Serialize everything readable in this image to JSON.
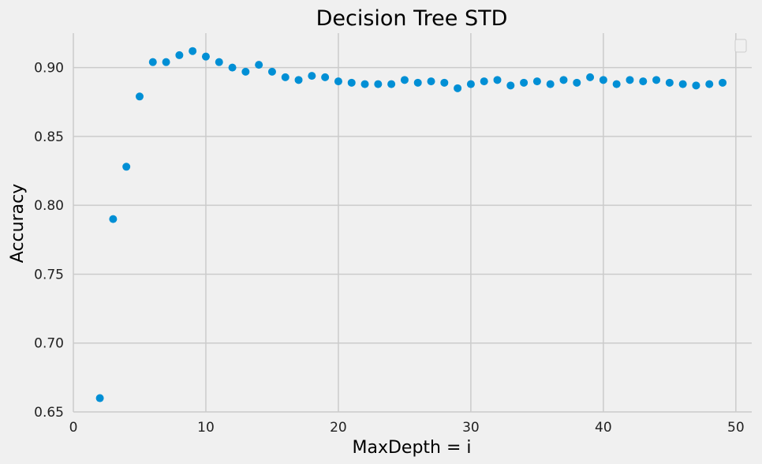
{
  "colors": {
    "background": "#f0f0f0",
    "grid": "#cbcbcb",
    "marker": "#008fd5"
  },
  "chart_data": {
    "type": "scatter",
    "title": "Decision Tree STD",
    "xlabel": "MaxDepth = i",
    "ylabel": "Accuracy",
    "xlim": [
      0,
      51.2
    ],
    "ylim": [
      0.65,
      0.925
    ],
    "xticks": [
      0,
      10,
      20,
      30,
      40,
      50
    ],
    "yticks": [
      0.65,
      0.7,
      0.75,
      0.8,
      0.85,
      0.9
    ],
    "xtick_labels": [
      "0",
      "10",
      "20",
      "30",
      "40",
      "50"
    ],
    "ytick_labels": [
      "0.65",
      "0.70",
      "0.75",
      "0.80",
      "0.85",
      "0.90"
    ],
    "grid": true,
    "legend": "top-right (empty)",
    "series": [
      {
        "x": [
          2,
          3,
          4,
          5,
          6,
          7,
          8,
          9,
          10,
          11,
          12,
          13,
          14,
          15,
          16,
          17,
          18,
          19,
          20,
          21,
          22,
          23,
          24,
          25,
          26,
          27,
          28,
          29,
          30,
          31,
          32,
          33,
          34,
          35,
          36,
          37,
          38,
          39,
          40,
          41,
          42,
          43,
          44,
          45,
          46,
          47,
          48,
          49
        ],
        "y": [
          0.66,
          0.79,
          0.828,
          0.879,
          0.904,
          0.904,
          0.909,
          0.912,
          0.908,
          0.904,
          0.9,
          0.897,
          0.902,
          0.897,
          0.893,
          0.891,
          0.894,
          0.893,
          0.89,
          0.889,
          0.888,
          0.888,
          0.888,
          0.891,
          0.889,
          0.89,
          0.889,
          0.885,
          0.888,
          0.89,
          0.891,
          0.887,
          0.889,
          0.89,
          0.888,
          0.891,
          0.889,
          0.893,
          0.891,
          0.888,
          0.891,
          0.89,
          0.891,
          0.889,
          0.888,
          0.887,
          0.888,
          0.889
        ]
      }
    ]
  }
}
